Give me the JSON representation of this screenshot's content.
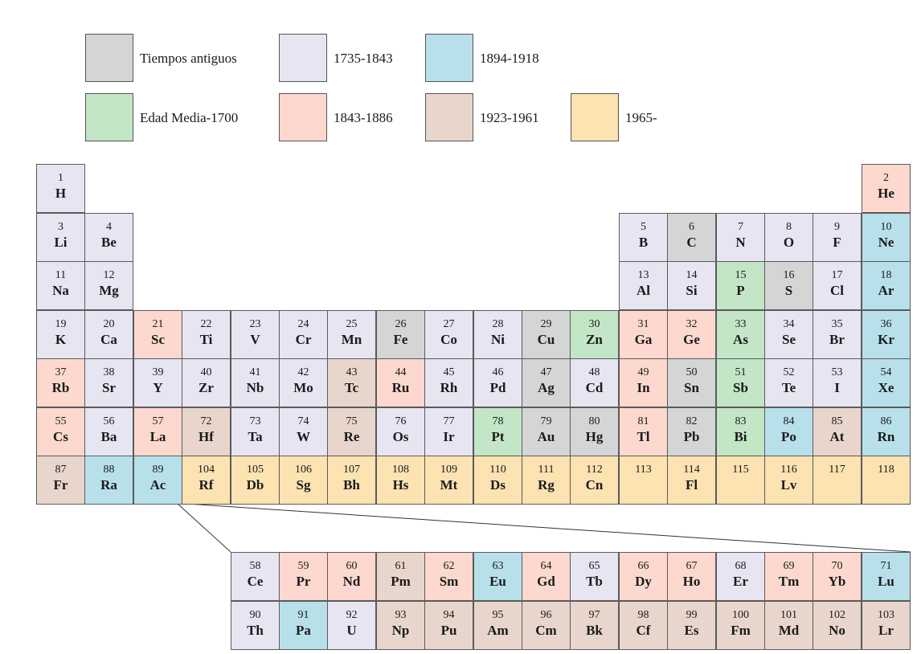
{
  "colors": {
    "ancient": "#d4d6d6",
    "middle": "#c3e6c6",
    "p1735": "#e7e5f2",
    "p1843": "#fdd8cf",
    "p1894": "#b8e0ea",
    "p1923": "#e8d6cc",
    "p1965": "#fde2b2"
  },
  "legend": [
    {
      "label": "Tiempos antiguos",
      "era": "ancient"
    },
    {
      "label": "1735-1843",
      "era": "p1735"
    },
    {
      "label": "1894-1918",
      "era": "p1894"
    },
    {
      "label": "Edad Media-1700",
      "era": "middle"
    },
    {
      "label": "1843-1886",
      "era": "p1843"
    },
    {
      "label": "1923-1961",
      "era": "p1923"
    },
    {
      "label": "1965-",
      "era": "p1965"
    }
  ],
  "elements": [
    {
      "n": "1",
      "s": "H",
      "e": "p1735",
      "r": 0,
      "c": 0
    },
    {
      "n": "2",
      "s": "He",
      "e": "p1843",
      "r": 0,
      "c": 17
    },
    {
      "n": "3",
      "s": "Li",
      "e": "p1735",
      "r": 1,
      "c": 0
    },
    {
      "n": "4",
      "s": "Be",
      "e": "p1735",
      "r": 1,
      "c": 1
    },
    {
      "n": "5",
      "s": "B",
      "e": "p1735",
      "r": 1,
      "c": 12
    },
    {
      "n": "6",
      "s": "C",
      "e": "ancient",
      "r": 1,
      "c": 13
    },
    {
      "n": "7",
      "s": "N",
      "e": "p1735",
      "r": 1,
      "c": 14
    },
    {
      "n": "8",
      "s": "O",
      "e": "p1735",
      "r": 1,
      "c": 15
    },
    {
      "n": "9",
      "s": "F",
      "e": "p1735",
      "r": 1,
      "c": 16
    },
    {
      "n": "10",
      "s": "Ne",
      "e": "p1894",
      "r": 1,
      "c": 17
    },
    {
      "n": "11",
      "s": "Na",
      "e": "p1735",
      "r": 2,
      "c": 0
    },
    {
      "n": "12",
      "s": "Mg",
      "e": "p1735",
      "r": 2,
      "c": 1
    },
    {
      "n": "13",
      "s": "Al",
      "e": "p1735",
      "r": 2,
      "c": 12
    },
    {
      "n": "14",
      "s": "Si",
      "e": "p1735",
      "r": 2,
      "c": 13
    },
    {
      "n": "15",
      "s": "P",
      "e": "middle",
      "r": 2,
      "c": 14
    },
    {
      "n": "16",
      "s": "S",
      "e": "ancient",
      "r": 2,
      "c": 15
    },
    {
      "n": "17",
      "s": "Cl",
      "e": "p1735",
      "r": 2,
      "c": 16
    },
    {
      "n": "18",
      "s": "Ar",
      "e": "p1894",
      "r": 2,
      "c": 17
    },
    {
      "n": "19",
      "s": "K",
      "e": "p1735",
      "r": 3,
      "c": 0
    },
    {
      "n": "20",
      "s": "Ca",
      "e": "p1735",
      "r": 3,
      "c": 1
    },
    {
      "n": "21",
      "s": "Sc",
      "e": "p1843",
      "r": 3,
      "c": 2
    },
    {
      "n": "22",
      "s": "Ti",
      "e": "p1735",
      "r": 3,
      "c": 3
    },
    {
      "n": "23",
      "s": "V",
      "e": "p1735",
      "r": 3,
      "c": 4
    },
    {
      "n": "24",
      "s": "Cr",
      "e": "p1735",
      "r": 3,
      "c": 5
    },
    {
      "n": "25",
      "s": "Mn",
      "e": "p1735",
      "r": 3,
      "c": 6
    },
    {
      "n": "26",
      "s": "Fe",
      "e": "ancient",
      "r": 3,
      "c": 7
    },
    {
      "n": "27",
      "s": "Co",
      "e": "p1735",
      "r": 3,
      "c": 8
    },
    {
      "n": "28",
      "s": "Ni",
      "e": "p1735",
      "r": 3,
      "c": 9
    },
    {
      "n": "29",
      "s": "Cu",
      "e": "ancient",
      "r": 3,
      "c": 10
    },
    {
      "n": "30",
      "s": "Zn",
      "e": "middle",
      "r": 3,
      "c": 11
    },
    {
      "n": "31",
      "s": "Ga",
      "e": "p1843",
      "r": 3,
      "c": 12
    },
    {
      "n": "32",
      "s": "Ge",
      "e": "p1843",
      "r": 3,
      "c": 13
    },
    {
      "n": "33",
      "s": "As",
      "e": "middle",
      "r": 3,
      "c": 14
    },
    {
      "n": "34",
      "s": "Se",
      "e": "p1735",
      "r": 3,
      "c": 15
    },
    {
      "n": "35",
      "s": "Br",
      "e": "p1735",
      "r": 3,
      "c": 16
    },
    {
      "n": "36",
      "s": "Kr",
      "e": "p1894",
      "r": 3,
      "c": 17
    },
    {
      "n": "37",
      "s": "Rb",
      "e": "p1843",
      "r": 4,
      "c": 0
    },
    {
      "n": "38",
      "s": "Sr",
      "e": "p1735",
      "r": 4,
      "c": 1
    },
    {
      "n": "39",
      "s": "Y",
      "e": "p1735",
      "r": 4,
      "c": 2
    },
    {
      "n": "40",
      "s": "Zr",
      "e": "p1735",
      "r": 4,
      "c": 3
    },
    {
      "n": "41",
      "s": "Nb",
      "e": "p1735",
      "r": 4,
      "c": 4
    },
    {
      "n": "42",
      "s": "Mo",
      "e": "p1735",
      "r": 4,
      "c": 5
    },
    {
      "n": "43",
      "s": "Tc",
      "e": "p1923",
      "r": 4,
      "c": 6
    },
    {
      "n": "44",
      "s": "Ru",
      "e": "p1843",
      "r": 4,
      "c": 7
    },
    {
      "n": "45",
      "s": "Rh",
      "e": "p1735",
      "r": 4,
      "c": 8
    },
    {
      "n": "46",
      "s": "Pd",
      "e": "p1735",
      "r": 4,
      "c": 9
    },
    {
      "n": "47",
      "s": "Ag",
      "e": "ancient",
      "r": 4,
      "c": 10
    },
    {
      "n": "48",
      "s": "Cd",
      "e": "p1735",
      "r": 4,
      "c": 11
    },
    {
      "n": "49",
      "s": "In",
      "e": "p1843",
      "r": 4,
      "c": 12
    },
    {
      "n": "50",
      "s": "Sn",
      "e": "ancient",
      "r": 4,
      "c": 13
    },
    {
      "n": "51",
      "s": "Sb",
      "e": "middle",
      "r": 4,
      "c": 14
    },
    {
      "n": "52",
      "s": "Te",
      "e": "p1735",
      "r": 4,
      "c": 15
    },
    {
      "n": "53",
      "s": "I",
      "e": "p1735",
      "r": 4,
      "c": 16
    },
    {
      "n": "54",
      "s": "Xe",
      "e": "p1894",
      "r": 4,
      "c": 17
    },
    {
      "n": "55",
      "s": "Cs",
      "e": "p1843",
      "r": 5,
      "c": 0
    },
    {
      "n": "56",
      "s": "Ba",
      "e": "p1735",
      "r": 5,
      "c": 1
    },
    {
      "n": "57",
      "s": "La",
      "e": "p1843",
      "r": 5,
      "c": 2
    },
    {
      "n": "72",
      "s": "Hf",
      "e": "p1923",
      "r": 5,
      "c": 3
    },
    {
      "n": "73",
      "s": "Ta",
      "e": "p1735",
      "r": 5,
      "c": 4
    },
    {
      "n": "74",
      "s": "W",
      "e": "p1735",
      "r": 5,
      "c": 5
    },
    {
      "n": "75",
      "s": "Re",
      "e": "p1923",
      "r": 5,
      "c": 6
    },
    {
      "n": "76",
      "s": "Os",
      "e": "p1735",
      "r": 5,
      "c": 7
    },
    {
      "n": "77",
      "s": "Ir",
      "e": "p1735",
      "r": 5,
      "c": 8
    },
    {
      "n": "78",
      "s": "Pt",
      "e": "middle",
      "r": 5,
      "c": 9
    },
    {
      "n": "79",
      "s": "Au",
      "e": "ancient",
      "r": 5,
      "c": 10
    },
    {
      "n": "80",
      "s": "Hg",
      "e": "ancient",
      "r": 5,
      "c": 11
    },
    {
      "n": "81",
      "s": "Tl",
      "e": "p1843",
      "r": 5,
      "c": 12
    },
    {
      "n": "82",
      "s": "Pb",
      "e": "ancient",
      "r": 5,
      "c": 13
    },
    {
      "n": "83",
      "s": "Bi",
      "e": "middle",
      "r": 5,
      "c": 14
    },
    {
      "n": "84",
      "s": "Po",
      "e": "p1894",
      "r": 5,
      "c": 15
    },
    {
      "n": "85",
      "s": "At",
      "e": "p1923",
      "r": 5,
      "c": 16
    },
    {
      "n": "86",
      "s": "Rn",
      "e": "p1894",
      "r": 5,
      "c": 17
    },
    {
      "n": "87",
      "s": "Fr",
      "e": "p1923",
      "r": 6,
      "c": 0
    },
    {
      "n": "88",
      "s": "Ra",
      "e": "p1894",
      "r": 6,
      "c": 1
    },
    {
      "n": "89",
      "s": "Ac",
      "e": "p1894",
      "r": 6,
      "c": 2
    },
    {
      "n": "104",
      "s": "Rf",
      "e": "p1965",
      "r": 6,
      "c": 3
    },
    {
      "n": "105",
      "s": "Db",
      "e": "p1965",
      "r": 6,
      "c": 4
    },
    {
      "n": "106",
      "s": "Sg",
      "e": "p1965",
      "r": 6,
      "c": 5
    },
    {
      "n": "107",
      "s": "Bh",
      "e": "p1965",
      "r": 6,
      "c": 6
    },
    {
      "n": "108",
      "s": "Hs",
      "e": "p1965",
      "r": 6,
      "c": 7
    },
    {
      "n": "109",
      "s": "Mt",
      "e": "p1965",
      "r": 6,
      "c": 8
    },
    {
      "n": "110",
      "s": "Ds",
      "e": "p1965",
      "r": 6,
      "c": 9
    },
    {
      "n": "111",
      "s": "Rg",
      "e": "p1965",
      "r": 6,
      "c": 10
    },
    {
      "n": "112",
      "s": "Cn",
      "e": "p1965",
      "r": 6,
      "c": 11
    },
    {
      "n": "113",
      "s": "",
      "e": "p1965",
      "r": 6,
      "c": 12
    },
    {
      "n": "114",
      "s": "Fl",
      "e": "p1965",
      "r": 6,
      "c": 13
    },
    {
      "n": "115",
      "s": "",
      "e": "p1965",
      "r": 6,
      "c": 14
    },
    {
      "n": "116",
      "s": "Lv",
      "e": "p1965",
      "r": 6,
      "c": 15
    },
    {
      "n": "117",
      "s": "",
      "e": "p1965",
      "r": 6,
      "c": 16
    },
    {
      "n": "118",
      "s": "",
      "e": "p1965",
      "r": 6,
      "c": 17
    },
    {
      "n": "58",
      "s": "Ce",
      "e": "p1735",
      "r": 7,
      "c": 4
    },
    {
      "n": "59",
      "s": "Pr",
      "e": "p1843",
      "r": 7,
      "c": 5
    },
    {
      "n": "60",
      "s": "Nd",
      "e": "p1843",
      "r": 7,
      "c": 6
    },
    {
      "n": "61",
      "s": "Pm",
      "e": "p1923",
      "r": 7,
      "c": 7
    },
    {
      "n": "62",
      "s": "Sm",
      "e": "p1843",
      "r": 7,
      "c": 8
    },
    {
      "n": "63",
      "s": "Eu",
      "e": "p1894",
      "r": 7,
      "c": 9
    },
    {
      "n": "64",
      "s": "Gd",
      "e": "p1843",
      "r": 7,
      "c": 10
    },
    {
      "n": "65",
      "s": "Tb",
      "e": "p1735",
      "r": 7,
      "c": 11
    },
    {
      "n": "66",
      "s": "Dy",
      "e": "p1843",
      "r": 7,
      "c": 12
    },
    {
      "n": "67",
      "s": "Ho",
      "e": "p1843",
      "r": 7,
      "c": 13
    },
    {
      "n": "68",
      "s": "Er",
      "e": "p1735",
      "r": 7,
      "c": 14
    },
    {
      "n": "69",
      "s": "Tm",
      "e": "p1843",
      "r": 7,
      "c": 15
    },
    {
      "n": "70",
      "s": "Yb",
      "e": "p1843",
      "r": 7,
      "c": 16
    },
    {
      "n": "71",
      "s": "Lu",
      "e": "p1894",
      "r": 7,
      "c": 17
    },
    {
      "n": "90",
      "s": "Th",
      "e": "p1735",
      "r": 8,
      "c": 4
    },
    {
      "n": "91",
      "s": "Pa",
      "e": "p1894",
      "r": 8,
      "c": 5
    },
    {
      "n": "92",
      "s": "U",
      "e": "p1735",
      "r": 8,
      "c": 6
    },
    {
      "n": "93",
      "s": "Np",
      "e": "p1923",
      "r": 8,
      "c": 7
    },
    {
      "n": "94",
      "s": "Pu",
      "e": "p1923",
      "r": 8,
      "c": 8
    },
    {
      "n": "95",
      "s": "Am",
      "e": "p1923",
      "r": 8,
      "c": 9
    },
    {
      "n": "96",
      "s": "Cm",
      "e": "p1923",
      "r": 8,
      "c": 10
    },
    {
      "n": "97",
      "s": "Bk",
      "e": "p1923",
      "r": 8,
      "c": 11
    },
    {
      "n": "98",
      "s": "Cf",
      "e": "p1923",
      "r": 8,
      "c": 12
    },
    {
      "n": "99",
      "s": "Es",
      "e": "p1923",
      "r": 8,
      "c": 13
    },
    {
      "n": "100",
      "s": "Fm",
      "e": "p1923",
      "r": 8,
      "c": 14
    },
    {
      "n": "101",
      "s": "Md",
      "e": "p1923",
      "r": 8,
      "c": 15
    },
    {
      "n": "102",
      "s": "No",
      "e": "p1923",
      "r": 8,
      "c": 16
    },
    {
      "n": "103",
      "s": "Lr",
      "e": "p1923",
      "r": 8,
      "c": 17
    }
  ]
}
